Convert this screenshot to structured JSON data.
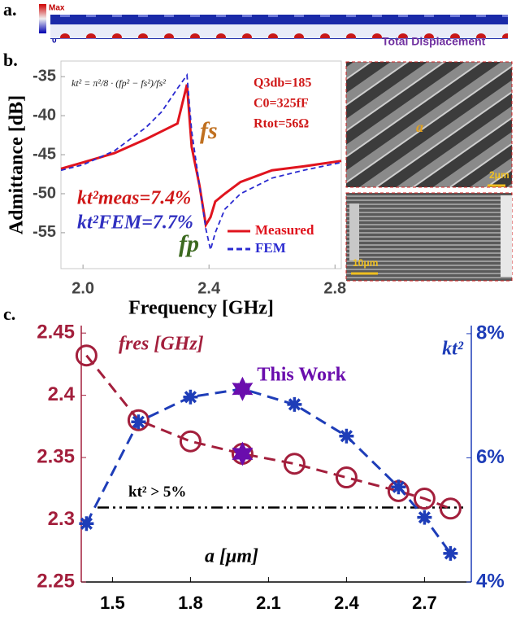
{
  "panel_labels": [
    "a.",
    "b.",
    "c."
  ],
  "displacement": {
    "scale_max": "Max",
    "scale_min": "0",
    "caption": "Total Displacement"
  },
  "micrographs": {
    "pitch_label": "a",
    "top_scale": "2μm",
    "bottom_scale": "10μm"
  },
  "chart_data": [
    {
      "type": "line",
      "xlabel": "Frequency [GHz]",
      "ylabel": "Admittance [dB]",
      "x": [
        1.93,
        2.0,
        2.1,
        2.2,
        2.25,
        2.3,
        2.33,
        2.345,
        2.37,
        2.39,
        2.405,
        2.42,
        2.45,
        2.5,
        2.6,
        2.7,
        2.82
      ],
      "xlim": [
        1.93,
        2.82
      ],
      "xticks": [
        {
          "value": 2.0,
          "label": "2.0"
        },
        2.4,
        2.8
      ],
      "ylim": [
        -59.6,
        -33
      ],
      "yticks": [
        -55,
        -50,
        -45,
        -40,
        -35
      ],
      "series": [
        {
          "name": "Measured",
          "color": "#e0141e",
          "dash": "solid",
          "values": [
            -46.8,
            -46,
            -44.8,
            -43,
            -42,
            -41,
            -36,
            -44,
            -49,
            -54,
            -53,
            -51,
            -50,
            -48.5,
            -47,
            -46.5,
            -45.8
          ]
        },
        {
          "name": "FEM",
          "color": "#2a2ad0",
          "dash": "dashed",
          "values": [
            -47,
            -46.3,
            -44.5,
            -41.5,
            -39.5,
            -36.5,
            -34.8,
            -42,
            -49,
            -54.5,
            -57.2,
            -55,
            -52,
            -50,
            -48,
            -47,
            -46
          ]
        }
      ],
      "legend": "lower right",
      "annotations": [
        "kt² = π²/8 · (fp² − fs²)/fs²",
        "Q3db=185",
        "C0=325fF",
        "Rtot=56Ω",
        "fs",
        "fp",
        "kt²meas=7.4%",
        "kt²FEM=7.7%"
      ]
    },
    {
      "type": "line",
      "xlabel": "a [μm]",
      "ylabel": "fres [GHz]",
      "y2label": "kt²",
      "x": [
        1.4,
        1.6,
        1.8,
        2.0,
        2.2,
        2.4,
        2.6,
        2.7,
        2.8
      ],
      "xlim": [
        1.38,
        2.88
      ],
      "xticks": [
        1.5,
        1.8,
        2.1,
        2.4,
        2.7
      ],
      "ylim": [
        2.25,
        2.456
      ],
      "yticks": [
        2.25,
        2.3,
        2.35,
        2.4,
        2.45
      ],
      "y2lim": [
        4,
        8.13
      ],
      "y2ticks": [
        {
          "value": 4,
          "label": "4%"
        },
        {
          "value": 6,
          "label": "6%"
        },
        {
          "value": 8,
          "label": "8%"
        }
      ],
      "series": [
        {
          "color": "#a31f3c",
          "marker": "circle",
          "values": [
            2.432,
            2.38,
            2.363,
            2.353,
            2.345,
            2.334,
            2.323,
            2.317,
            2.309
          ]
        },
        {
          "color": "#1e3db8",
          "marker": "asterisk",
          "axis": "y2",
          "values": [
            4.94,
            6.58,
            6.98,
            7.11,
            6.86,
            6.35,
            5.53,
            5.04,
            4.46
          ]
        }
      ],
      "highlight": {
        "label": "This Work",
        "x": 2.0,
        "color": "#6a0dad"
      },
      "threshold": {
        "value": 5.2,
        "axis": "y2",
        "label": "kt² > 5%"
      }
    }
  ]
}
